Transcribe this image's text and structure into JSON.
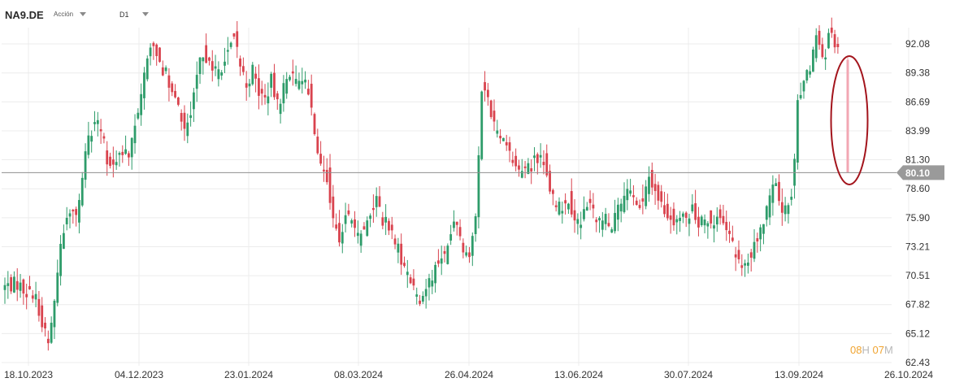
{
  "header": {
    "symbol": "NA9.DE",
    "asset_type": "Acción",
    "timeframe": "D1"
  },
  "countdown": {
    "hours": "08",
    "hours_unit": "H",
    "minutes": "07",
    "minutes_unit": "M"
  },
  "colors": {
    "up": "#2e9c6a",
    "down": "#d9434e",
    "grid": "#ececec",
    "price_line": "#8f8f8f",
    "price_label_bg": "#9a9a9a",
    "highlight_ellipse": "#a3141c",
    "last_candle": "#f2a7b3"
  },
  "chart_data": {
    "type": "candlestick",
    "y_ticks": [
      "92.08",
      "89.38",
      "86.69",
      "83.99",
      "81.30",
      "78.60",
      "75.90",
      "73.21",
      "70.51",
      "67.82",
      "65.12",
      "62.43"
    ],
    "x_ticks": [
      "18.10.2023",
      "04.12.2023",
      "23.01.2024",
      "08.03.2024",
      "26.04.2024",
      "13.06.2024",
      "30.07.2024",
      "13.09.2024",
      "26.10.2024"
    ],
    "ylim": [
      62.43,
      94.5
    ],
    "current_price": "80.10",
    "annotation": "ellipse around last candle",
    "close_path": [
      [
        0,
        69.5
      ],
      [
        4,
        69.8
      ],
      [
        7,
        69.0
      ],
      [
        10,
        68.4
      ],
      [
        12,
        66.0
      ],
      [
        14,
        64.6
      ],
      [
        16,
        67.8
      ],
      [
        18,
        73.5
      ],
      [
        20,
        76.2
      ],
      [
        22,
        76.8
      ],
      [
        23,
        75.9
      ],
      [
        25,
        79.8
      ],
      [
        27,
        83.0
      ],
      [
        29,
        84.8
      ],
      [
        31,
        84.0
      ],
      [
        33,
        81.5
      ],
      [
        35,
        80.7
      ],
      [
        37,
        82.2
      ],
      [
        40,
        81.4
      ],
      [
        42,
        84.5
      ],
      [
        44,
        87.8
      ],
      [
        46,
        90.8
      ],
      [
        48,
        92.4
      ],
      [
        50,
        90.5
      ],
      [
        52,
        89.2
      ],
      [
        54,
        87.3
      ],
      [
        56,
        86.1
      ],
      [
        58,
        84.1
      ],
      [
        60,
        85.4
      ],
      [
        62,
        89.2
      ],
      [
        64,
        91.4
      ],
      [
        66,
        90.6
      ],
      [
        68,
        89.4
      ],
      [
        70,
        90.0
      ],
      [
        72,
        91.4
      ],
      [
        74,
        92.8
      ],
      [
        76,
        90.1
      ],
      [
        78,
        88.3
      ],
      [
        80,
        89.6
      ],
      [
        82,
        87.6
      ],
      [
        84,
        86.9
      ],
      [
        86,
        88.6
      ],
      [
        88,
        86.3
      ],
      [
        90,
        88.0
      ],
      [
        92,
        89.5
      ],
      [
        94,
        88.2
      ],
      [
        96,
        89.2
      ],
      [
        98,
        87.8
      ],
      [
        100,
        84.2
      ],
      [
        102,
        81.0
      ],
      [
        104,
        79.9
      ],
      [
        106,
        75.5
      ],
      [
        108,
        73.8
      ],
      [
        110,
        76.3
      ],
      [
        112,
        75.1
      ],
      [
        114,
        74.1
      ],
      [
        116,
        75.0
      ],
      [
        118,
        76.6
      ],
      [
        120,
        77.6
      ],
      [
        122,
        75.8
      ],
      [
        124,
        74.9
      ],
      [
        126,
        73.4
      ],
      [
        128,
        72.2
      ],
      [
        130,
        70.9
      ],
      [
        132,
        69.3
      ],
      [
        134,
        68.1
      ],
      [
        136,
        69.5
      ],
      [
        138,
        70.6
      ],
      [
        140,
        71.9
      ],
      [
        142,
        72.3
      ],
      [
        144,
        74.5
      ],
      [
        146,
        75.4
      ],
      [
        148,
        73.2
      ],
      [
        150,
        72.5
      ],
      [
        152,
        75.4
      ],
      [
        154,
        88.3
      ],
      [
        156,
        87.3
      ],
      [
        158,
        84.5
      ],
      [
        160,
        83.5
      ],
      [
        162,
        82.7
      ],
      [
        164,
        81.0
      ],
      [
        166,
        80.2
      ],
      [
        168,
        80.0
      ],
      [
        170,
        80.8
      ],
      [
        172,
        81.4
      ],
      [
        174,
        81.2
      ],
      [
        176,
        78.8
      ],
      [
        178,
        76.6
      ],
      [
        180,
        77.1
      ],
      [
        182,
        77.7
      ],
      [
        184,
        76.0
      ],
      [
        186,
        75.2
      ],
      [
        188,
        77.2
      ],
      [
        190,
        76.4
      ],
      [
        192,
        75.3
      ],
      [
        194,
        76.0
      ],
      [
        196,
        75.1
      ],
      [
        198,
        76.8
      ],
      [
        200,
        77.4
      ],
      [
        202,
        78.5
      ],
      [
        204,
        76.8
      ],
      [
        206,
        77.0
      ],
      [
        208,
        79.7
      ],
      [
        210,
        78.5
      ],
      [
        212,
        77.1
      ],
      [
        214,
        76.2
      ],
      [
        216,
        75.8
      ],
      [
        218,
        76.0
      ],
      [
        220,
        75.5
      ],
      [
        222,
        77.2
      ],
      [
        224,
        75.3
      ],
      [
        226,
        76.2
      ],
      [
        228,
        75.8
      ],
      [
        230,
        75.9
      ],
      [
        232,
        75.1
      ],
      [
        234,
        74.0
      ],
      [
        236,
        72.3
      ],
      [
        238,
        71.2
      ],
      [
        240,
        71.9
      ],
      [
        242,
        73.7
      ],
      [
        244,
        75.0
      ],
      [
        246,
        76.4
      ],
      [
        248,
        79.5
      ],
      [
        250,
        77.5
      ],
      [
        252,
        76.5
      ],
      [
        254,
        78.5
      ],
      [
        255,
        81.0
      ],
      [
        256,
        86.5
      ],
      [
        258,
        89.0
      ],
      [
        260,
        89.6
      ],
      [
        262,
        92.5
      ],
      [
        264,
        90.6
      ],
      [
        265,
        91.2
      ],
      [
        266,
        93.5
      ],
      [
        268,
        92.2
      ],
      [
        269,
        92.0
      ]
    ],
    "last_candle": {
      "open": 90.6,
      "high": 90.8,
      "low": 80.1,
      "close": 80.1
    }
  }
}
